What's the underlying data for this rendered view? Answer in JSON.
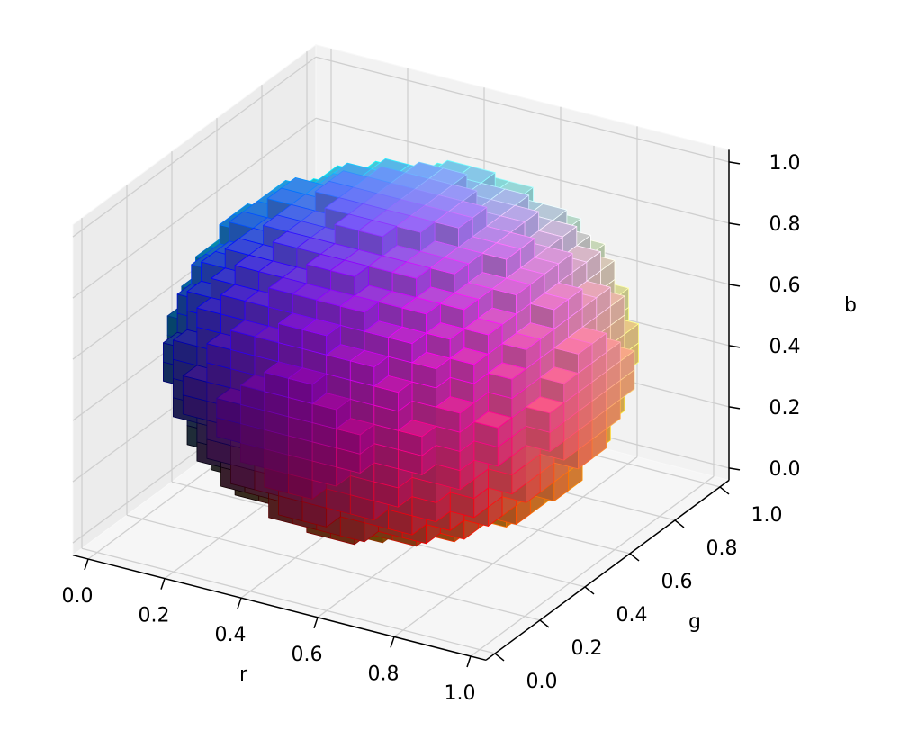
{
  "chart_data": {
    "type": "voxels",
    "xlabel": "r",
    "ylabel": "g",
    "zlabel": "b",
    "xlim": [
      0,
      1
    ],
    "ylim": [
      0,
      1
    ],
    "zlim": [
      0,
      1
    ],
    "xticks": [
      {
        "value": 0,
        "label": "0.0"
      },
      0.2,
      0.4,
      0.6,
      0.8,
      {
        "value": 1,
        "label": "1.0"
      }
    ],
    "yticks": [
      {
        "value": 0,
        "label": "0.0"
      },
      0.2,
      0.4,
      0.6,
      0.8,
      {
        "value": 1,
        "label": "1.0"
      }
    ],
    "zticks": [
      {
        "value": 0,
        "label": "0.0"
      },
      0.2,
      0.4,
      0.6,
      0.8,
      {
        "value": 1,
        "label": "1.0"
      }
    ],
    "sphere": {
      "center": [
        0.5,
        0.5,
        0.5
      ],
      "radius": 0.5
    },
    "voxel_size": 0.0625,
    "grid": true
  }
}
